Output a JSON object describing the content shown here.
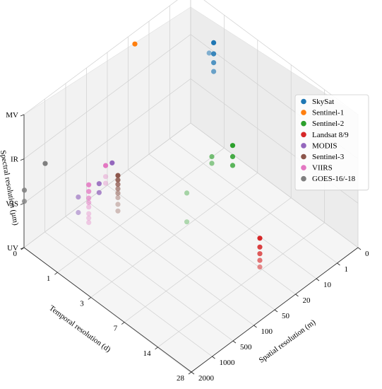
{
  "chart_data": {
    "type": "scatter",
    "projection": "3d",
    "grid": true,
    "legend_position": "right",
    "axes": {
      "x": {
        "label": "Spatial resolution (m)",
        "ticks": [
          "0",
          "1",
          "10",
          "20",
          "50",
          "100",
          "500",
          "1000",
          "2000"
        ]
      },
      "y": {
        "label": "Temporal resolution (d)",
        "ticks": [
          "0",
          "1",
          "3",
          "7",
          "14",
          "28"
        ]
      },
      "z": {
        "label": "Spectral resolution (µm)",
        "ticks": [
          "UV",
          "VIS",
          "IR",
          "MV"
        ]
      }
    },
    "series": [
      {
        "name": "SkySat",
        "color": "#1f77b4",
        "points": [
          [
            0.5,
            1,
            2.55
          ],
          [
            0.5,
            1,
            2.3
          ],
          [
            0.5,
            1,
            2.1
          ],
          [
            0.5,
            1,
            1.9
          ],
          [
            0.8,
            1.1,
            2.45
          ]
        ]
      },
      {
        "name": "Sentinel-1",
        "color": "#ff7f0e",
        "points": [
          [
            20,
            0.2,
            2.95
          ]
        ]
      },
      {
        "name": "Sentinel-2",
        "color": "#2ca02c",
        "points": [
          [
            10,
            5,
            1.6
          ],
          [
            10,
            5,
            1.35
          ],
          [
            10,
            5,
            1.15
          ],
          [
            20,
            5,
            1.7
          ],
          [
            20,
            5,
            1.55
          ],
          [
            60,
            5,
            1.3
          ],
          [
            60,
            5,
            0.65
          ]
        ]
      },
      {
        "name": "Landsat 8/9",
        "color": "#d62728",
        "points": [
          [
            30,
            16,
            0.9
          ],
          [
            30,
            16,
            0.7
          ],
          [
            30,
            16,
            0.55
          ],
          [
            30,
            16,
            0.4
          ],
          [
            30,
            16,
            0.25
          ]
        ]
      },
      {
        "name": "MODIS",
        "color": "#9467bd",
        "points": [
          [
            250,
            1,
            1.55
          ],
          [
            500,
            1,
            1.3
          ],
          [
            500,
            1,
            1.1
          ],
          [
            1000,
            1,
            1.35
          ],
          [
            1000,
            1,
            1.0
          ]
        ]
      },
      {
        "name": "Sentinel-3",
        "color": "#8c564b",
        "points": [
          [
            300,
            1.5,
            1.45
          ],
          [
            300,
            1.5,
            1.35
          ],
          [
            300,
            1.5,
            1.25
          ],
          [
            300,
            1.5,
            1.15
          ],
          [
            300,
            1.5,
            1.05
          ],
          [
            300,
            1.5,
            0.95
          ],
          [
            300,
            1.5,
            0.8
          ],
          [
            300,
            1.5,
            0.65
          ]
        ]
      },
      {
        "name": "VIIRS",
        "color": "#e377c2",
        "points": [
          [
            375,
            1,
            1.6
          ],
          [
            750,
            1,
            1.45
          ],
          [
            750,
            1,
            1.3
          ],
          [
            750,
            1,
            1.15
          ],
          [
            750,
            1,
            1.05
          ],
          [
            750,
            1,
            0.95
          ],
          [
            750,
            1,
            0.8
          ],
          [
            750,
            1,
            0.7
          ],
          [
            750,
            1,
            0.6
          ],
          [
            375,
            1,
            1.35
          ],
          [
            375,
            1,
            1.2
          ]
        ]
      },
      {
        "name": "GOES-16/-18",
        "color": "#7f7f7f",
        "points": [
          [
            1000,
            0.01,
            1.55
          ],
          [
            2000,
            0.01,
            1.3
          ],
          [
            2000,
            0.01,
            1.05
          ]
        ]
      }
    ]
  }
}
